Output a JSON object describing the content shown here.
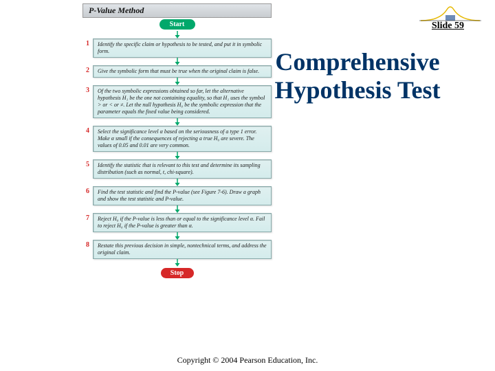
{
  "slide_label": "Slide 59",
  "title": "Comprehensive Hypothesis Test",
  "footer": "Copyright © 2004 Pearson Education, Inc.",
  "flow": {
    "header": "P-Value Method",
    "start": "Start",
    "stop": "Stop",
    "arrow_color": "#00a86b",
    "steps": [
      {
        "n": "1",
        "t": "Identify the specific claim or hypothesis to be tested, and put it in symbolic form."
      },
      {
        "n": "2",
        "t": "Give the symbolic form that must be true when the original claim is false."
      },
      {
        "n": "3",
        "t": "Of the two symbolic expressions obtained so far, let the alternative hypothesis H₁ be the one not containing equality, so that H₁ uses the symbol > or < or ≠. Let the null hypothesis H₀ be the symbolic expression that the parameter equals the fixed value being considered."
      },
      {
        "n": "4",
        "t": "Select the significance level α based on the seriousness of a type 1 error. Make α small if the consequences of rejecting a true H₀ are severe. The values of 0.05 and 0.01 are very common."
      },
      {
        "n": "5",
        "t": "Identify the statistic that is relevant to this test and determine its sampling distribution (such as normal, t, chi-square)."
      },
      {
        "n": "6",
        "t": "Find the test statistic and find the P-value (see Figure 7-6). Draw a graph and show the test statistic and P-value."
      },
      {
        "n": "7",
        "t": "Reject H₀ if the P-value is less than or equal to the significance level α. Fail to reject H₀ if the P-value is greater than α."
      },
      {
        "n": "8",
        "t": "Restate this previous decision in simple, nontechnical terms, and address the original claim."
      }
    ]
  },
  "colors": {
    "title": "#003366",
    "box_border": "#8aa",
    "box_bg_top": "#e0f0f0",
    "box_bg_bot": "#d4ecec",
    "start": "#00a86b",
    "stop": "#d62828"
  }
}
